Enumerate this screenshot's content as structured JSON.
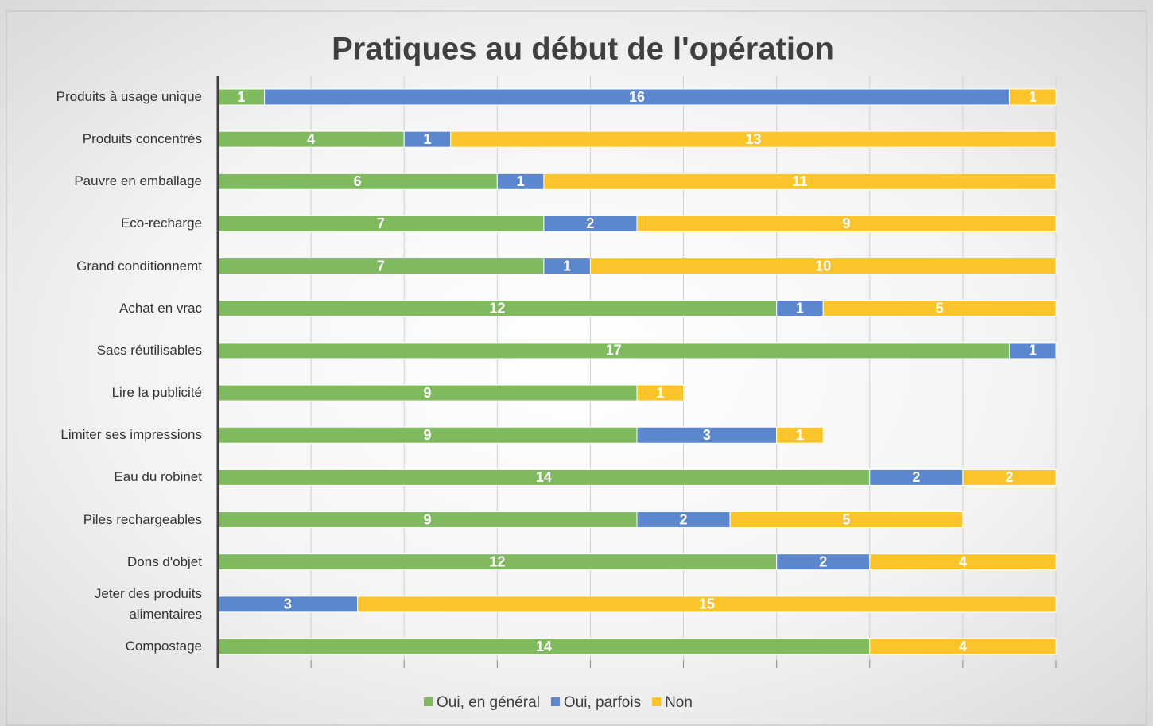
{
  "chart_data": {
    "type": "stacked-barh",
    "title": "Pratiques au début de l'opération",
    "categories": [
      "Produits à usage unique",
      "Produits concentrés",
      "Pauvre en emballage",
      "Eco-recharge",
      "Grand conditionnemt",
      "Achat  en vrac",
      "Sacs réutilisables",
      "Lire la publicité",
      "Limiter ses impressions",
      "Eau du robinet",
      "Piles rechargeables",
      "Dons d'objet",
      "Jeter des produits alimentaires",
      "Compostage"
    ],
    "series": [
      {
        "name": "Oui, en général",
        "color": "#7fba5f",
        "values": [
          1,
          4,
          6,
          7,
          7,
          12,
          17,
          9,
          9,
          14,
          9,
          12,
          null,
          14
        ]
      },
      {
        "name": "Oui, parfois",
        "color": "#5b87cf",
        "values": [
          16,
          1,
          1,
          2,
          1,
          1,
          1,
          null,
          3,
          2,
          2,
          2,
          3,
          null
        ]
      },
      {
        "name": "Non",
        "color": "#fbc42a",
        "values": [
          1,
          13,
          11,
          9,
          10,
          5,
          null,
          1,
          1,
          2,
          5,
          4,
          15,
          4
        ]
      }
    ],
    "xlim": [
      0,
      18
    ],
    "xticks": [
      0,
      2,
      4,
      6,
      8,
      10,
      12,
      14,
      16,
      18
    ],
    "grid": true,
    "legend": "bottom"
  }
}
